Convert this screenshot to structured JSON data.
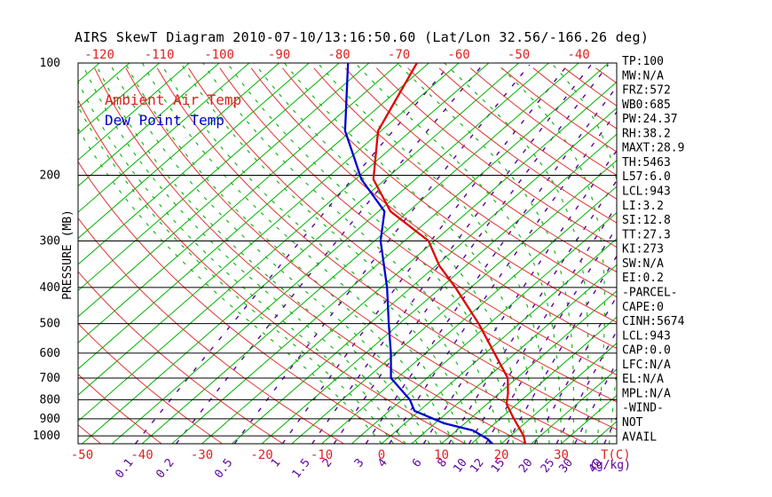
{
  "chart": {
    "title": "AIRS SkewT Diagram 2010-07-10/13:16:50.60 (Lat/Lon 32.56/-166.26 deg)",
    "legend": [
      {
        "label": "Ambient Air Temp",
        "color": "#e02020"
      },
      {
        "label": "Dew Point Temp",
        "color": "#0000cc"
      }
    ],
    "y_axis": {
      "label": "PRESSURE (MB)",
      "ticks": [
        100,
        200,
        300,
        400,
        500,
        600,
        700,
        800,
        900,
        1000
      ]
    },
    "x_axis_top": {
      "ticks": [
        -120,
        -110,
        -100,
        -90,
        -80,
        -70,
        -60,
        -50,
        -40
      ],
      "color": "#e02020"
    },
    "x_axis_bottom": {
      "ticks": [
        -50,
        -40,
        -30,
        -20,
        -10,
        0,
        10,
        20,
        30
      ],
      "unit": "T(C)",
      "color": "#e02020"
    },
    "mixing_axis": {
      "ticks": [
        0.1,
        0.2,
        0.5,
        1,
        1.5,
        2,
        3,
        4,
        6,
        8,
        10,
        12,
        15,
        20,
        25,
        30,
        40
      ],
      "unit": "(g/kg)",
      "color": "#5a00a0"
    }
  },
  "chart_data": {
    "type": "line",
    "variant": "skewT-logP",
    "pressure_range_mb": [
      100,
      1050
    ],
    "series": [
      {
        "name": "Ambient Air Temp",
        "color": "#e00000",
        "pressure_mb": [
          100,
          152,
          205,
          250,
          300,
          350,
          400,
          500,
          600,
          700,
          770,
          820,
          890,
          1000,
          1050
        ],
        "temp_c": [
          -67,
          -60.5,
          -52,
          -43,
          -31,
          -24.4,
          -17.6,
          -6.8,
          1.5,
          8.5,
          11.5,
          13.2,
          16.8,
          22.2,
          24
        ]
      },
      {
        "name": "Dew Point Temp",
        "color": "#0000d0",
        "pressure_mb": [
          100,
          152,
          205,
          250,
          300,
          400,
          500,
          600,
          700,
          800,
          857,
          925,
          967,
          1021,
          1050
        ],
        "temp_c": [
          -78.5,
          -66,
          -54,
          -44,
          -39,
          -29,
          -21.8,
          -15.8,
          -11,
          -3.7,
          -0.8,
          6.5,
          12.7,
          16.9,
          18.5
        ]
      }
    ],
    "grid": {
      "pressure_lines_mb": [
        100,
        200,
        300,
        400,
        500,
        600,
        700,
        800,
        900,
        1000
      ],
      "isotherms": {
        "start_c": -160,
        "end_c": 45,
        "step_c": 5,
        "color": "#00b400",
        "style": "solid"
      },
      "dry_adiabats": {
        "start_c_at_1000mb": -120,
        "end_c_at_1000mb": 190,
        "step_c": 10,
        "color": "#e03434",
        "style": "solid"
      },
      "moist_adiabats": {
        "start_c_at_surface": 0,
        "end_c_at_surface": 38,
        "step_c": 2,
        "color": "#00b400",
        "style": "dashed"
      },
      "mixing_ratio_g_kg": {
        "values": [
          0.1,
          0.2,
          0.5,
          1,
          1.5,
          2,
          3,
          4,
          6,
          8,
          10,
          12,
          15,
          20,
          25,
          30,
          40
        ],
        "color": "#5a00a0",
        "style": "dashed"
      }
    },
    "frame_color": "#000000"
  },
  "stats_panel": {
    "items": [
      "TP:100",
      "MW:N/A",
      "FRZ:572",
      "WB0:685",
      "PW:24.37",
      "RH:38.2",
      "MAXT:28.9",
      "TH:5463",
      "L57:6.0",
      "LCL:943",
      "LI:3.2",
      "SI:12.8",
      "TT:27.3",
      "KI:273",
      "SW:N/A",
      "EI:0.2",
      "-PARCEL-",
      "CAPE:0",
      "CINH:5674",
      "LCL:943",
      "CAP:0.0",
      "LFC:N/A",
      "EL:N/A",
      "MPL:N/A",
      "-WIND-",
      "NOT",
      "AVAIL"
    ]
  }
}
